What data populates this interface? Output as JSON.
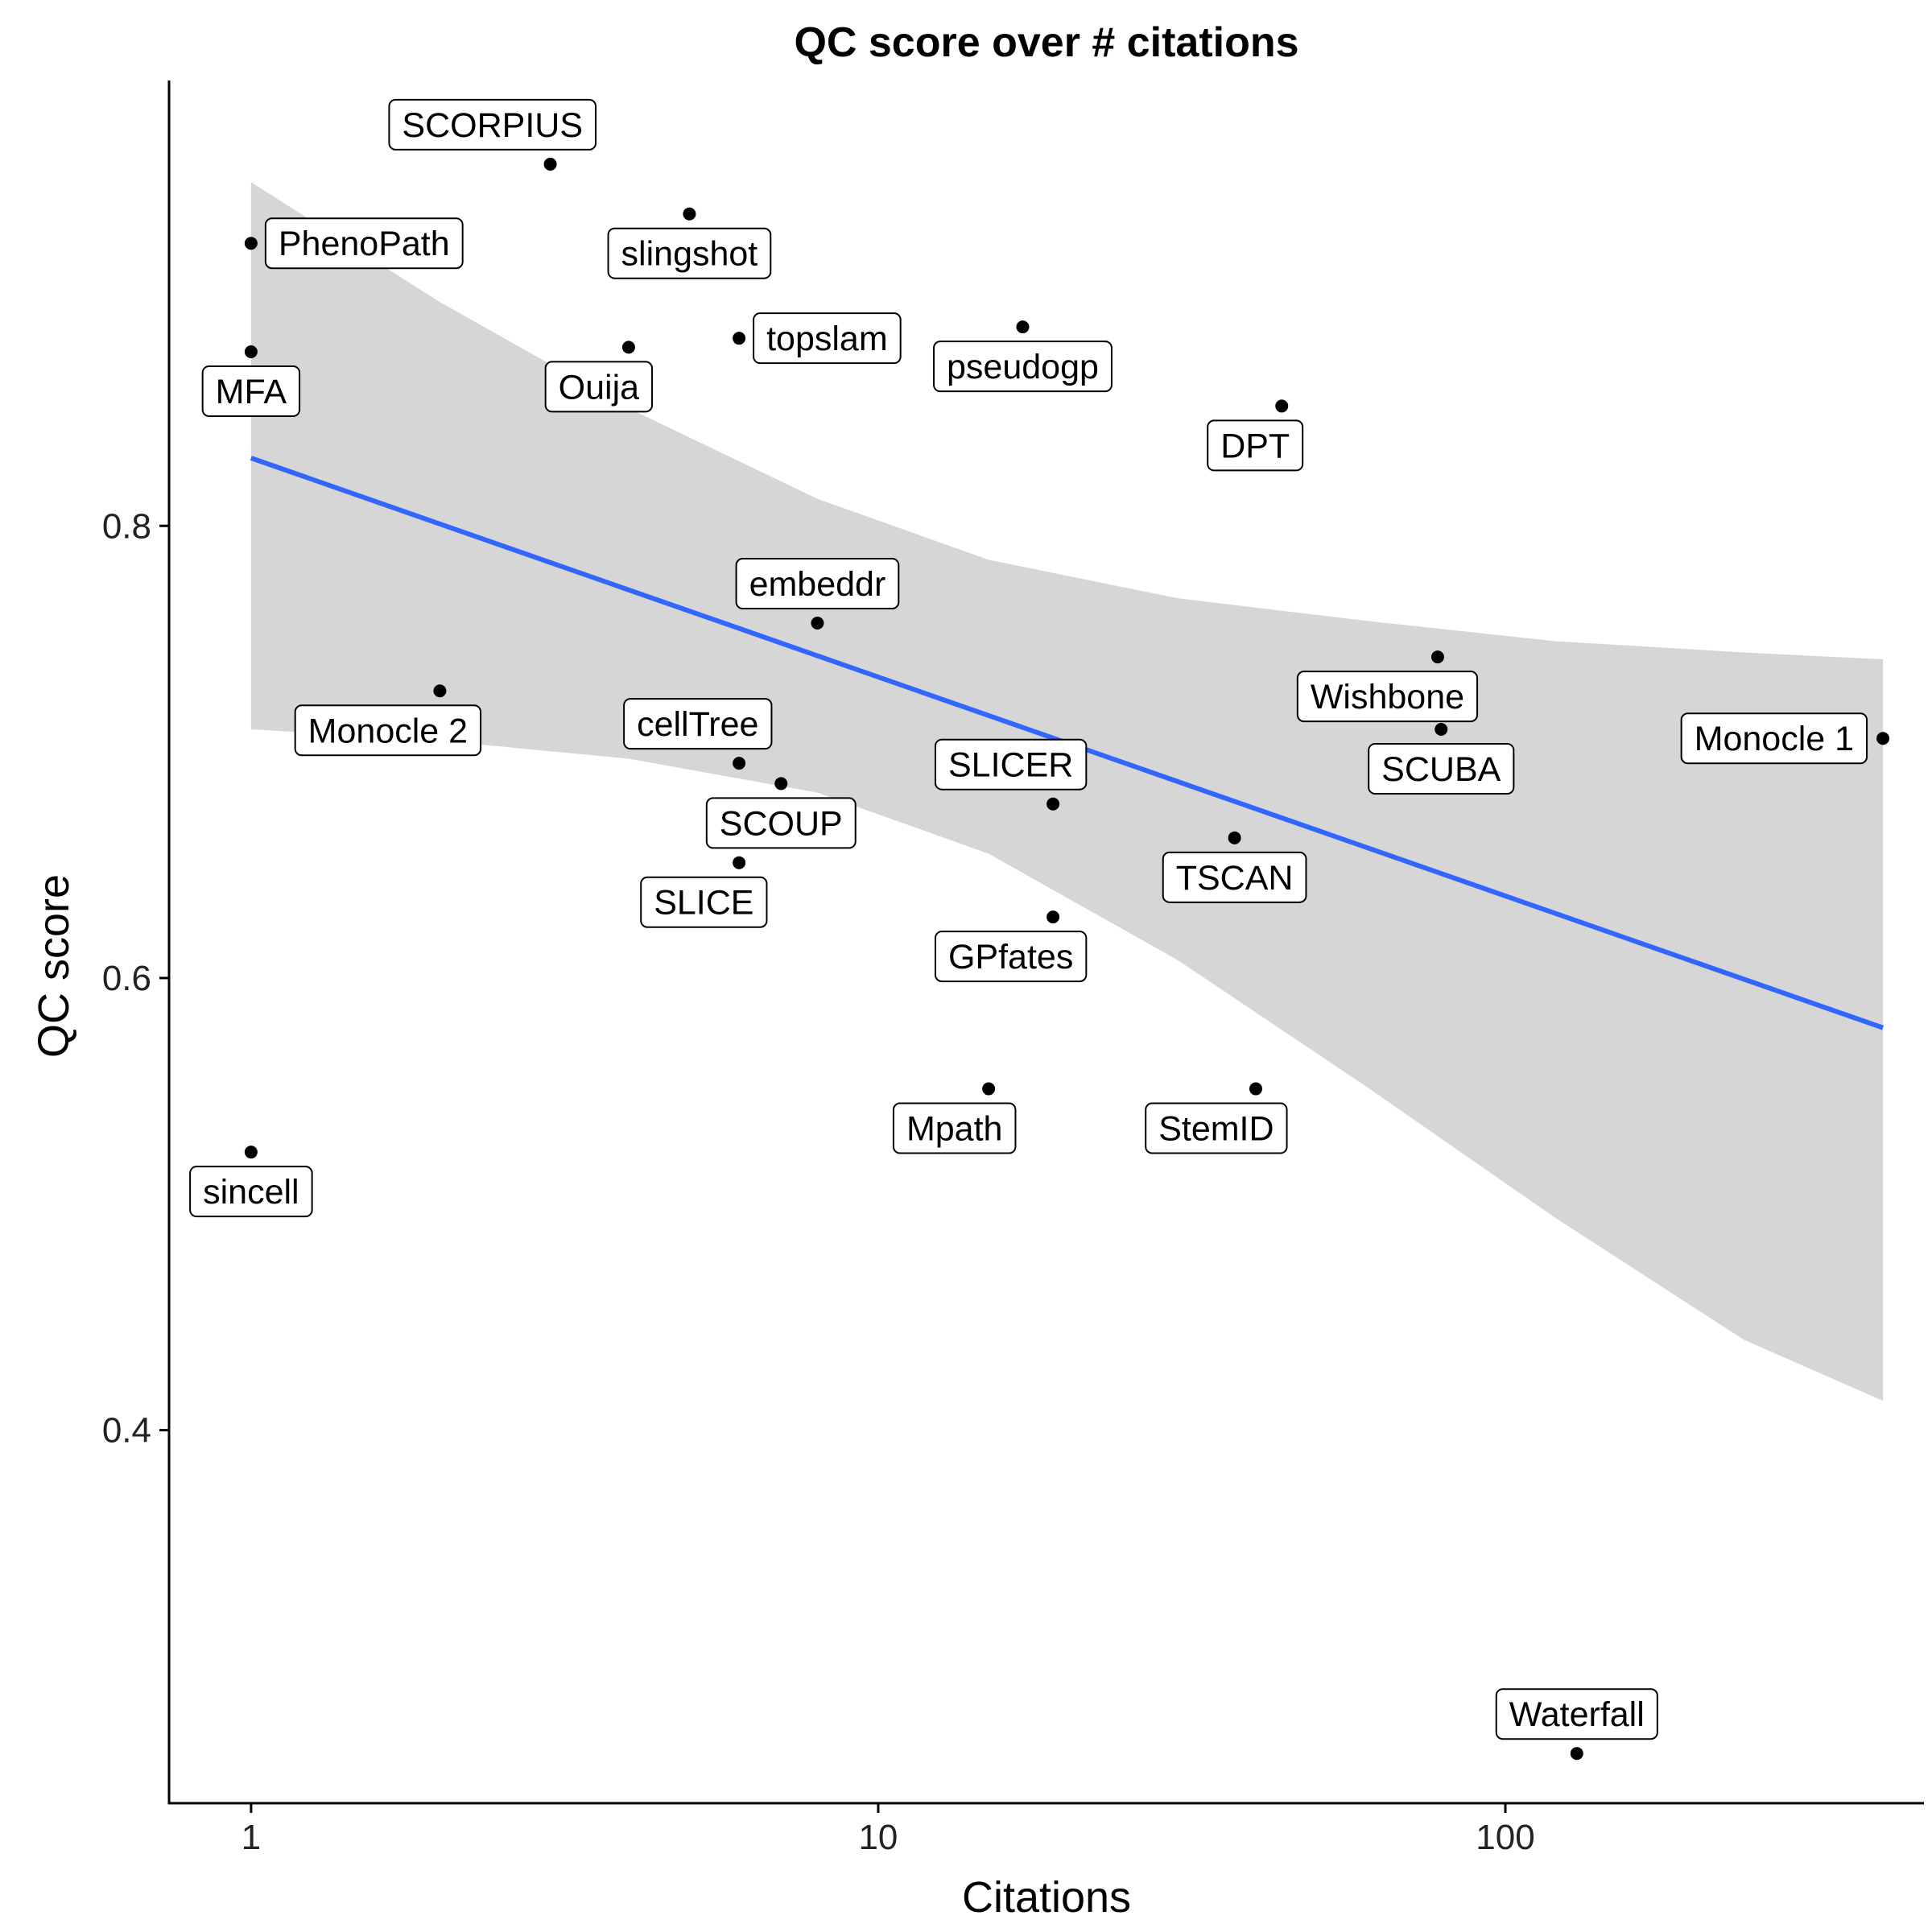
{
  "chart_data": {
    "type": "scatter",
    "title": "QC score over # citations",
    "xlabel": "Citations",
    "ylabel": "QC score",
    "x_scale": "log10",
    "xlim": [
      0.74,
      465
    ],
    "ylim": [
      0.235,
      0.997
    ],
    "x_ticks": [
      {
        "value": 1,
        "label": "1"
      },
      {
        "value": 10,
        "label": "10"
      },
      {
        "value": 100,
        "label": "100"
      }
    ],
    "y_ticks": [
      {
        "value": 0.4,
        "label": "0.4"
      },
      {
        "value": 0.6,
        "label": "0.6"
      },
      {
        "value": 0.8,
        "label": "0.8"
      }
    ],
    "grid": false,
    "legend": "none",
    "colors": {
      "point": "#000000",
      "fit_line": "#3366FF",
      "confidence_band": "#999999",
      "axis": "#000000",
      "label_border": "#000000",
      "label_fill": "#ffffff"
    },
    "points": [
      {
        "name": "SCORPIUS",
        "x": 3.0,
        "y": 0.96,
        "label_pos": "above-left"
      },
      {
        "name": "slingshot",
        "x": 5.0,
        "y": 0.938,
        "label_pos": "below"
      },
      {
        "name": "PhenoPath",
        "x": 1.0,
        "y": 0.925,
        "label_pos": "right"
      },
      {
        "name": "topslam",
        "x": 6.0,
        "y": 0.883,
        "label_pos": "right"
      },
      {
        "name": "pseudogp",
        "x": 17.0,
        "y": 0.888,
        "label_pos": "below"
      },
      {
        "name": "MFA",
        "x": 1.0,
        "y": 0.877,
        "label_pos": "below"
      },
      {
        "name": "Ouija",
        "x": 4.0,
        "y": 0.879,
        "label_pos": "below-left"
      },
      {
        "name": "DPT",
        "x": 44.0,
        "y": 0.853,
        "label_pos": "below-left"
      },
      {
        "name": "embeddr",
        "x": 8.0,
        "y": 0.757,
        "label_pos": "above"
      },
      {
        "name": "Wishbone",
        "x": 78.0,
        "y": 0.742,
        "label_pos": "below-left"
      },
      {
        "name": "Monocle 2",
        "x": 2.0,
        "y": 0.727,
        "label_pos": "below-left"
      },
      {
        "name": "SCUBA",
        "x": 79.0,
        "y": 0.71,
        "label_pos": "below"
      },
      {
        "name": "Monocle 1",
        "x": 400.0,
        "y": 0.706,
        "label_pos": "left"
      },
      {
        "name": "cellTree",
        "x": 6.0,
        "y": 0.695,
        "label_pos": "above-left"
      },
      {
        "name": "SCOUP",
        "x": 7.0,
        "y": 0.686,
        "label_pos": "below"
      },
      {
        "name": "SLICER",
        "x": 19.0,
        "y": 0.677,
        "label_pos": "above-left"
      },
      {
        "name": "TSCAN",
        "x": 37.0,
        "y": 0.662,
        "label_pos": "below"
      },
      {
        "name": "SLICE",
        "x": 6.0,
        "y": 0.651,
        "label_pos": "below-left"
      },
      {
        "name": "GPfates",
        "x": 19.0,
        "y": 0.627,
        "label_pos": "below-left"
      },
      {
        "name": "Mpath",
        "x": 15.0,
        "y": 0.551,
        "label_pos": "below-left"
      },
      {
        "name": "StemID",
        "x": 40.0,
        "y": 0.551,
        "label_pos": "below-left"
      },
      {
        "name": "sincell",
        "x": 1.0,
        "y": 0.523,
        "label_pos": "below"
      },
      {
        "name": "Waterfall",
        "x": 130.0,
        "y": 0.257,
        "label_pos": "above"
      }
    ],
    "fit": {
      "method": "linear",
      "x_range": [
        1,
        400
      ],
      "y_start": 0.83,
      "y_end": 0.578,
      "band": [
        {
          "x": 1,
          "lo": 0.71,
          "hi": 0.952
        },
        {
          "x": 2,
          "lo": 0.705,
          "hi": 0.899
        },
        {
          "x": 4,
          "lo": 0.697,
          "hi": 0.852
        },
        {
          "x": 8,
          "lo": 0.682,
          "hi": 0.812
        },
        {
          "x": 15,
          "lo": 0.655,
          "hi": 0.785
        },
        {
          "x": 30,
          "lo": 0.608,
          "hi": 0.768
        },
        {
          "x": 60,
          "lo": 0.552,
          "hi": 0.758
        },
        {
          "x": 120,
          "lo": 0.494,
          "hi": 0.749
        },
        {
          "x": 240,
          "lo": 0.44,
          "hi": 0.744
        },
        {
          "x": 400,
          "lo": 0.413,
          "hi": 0.741
        }
      ]
    }
  }
}
